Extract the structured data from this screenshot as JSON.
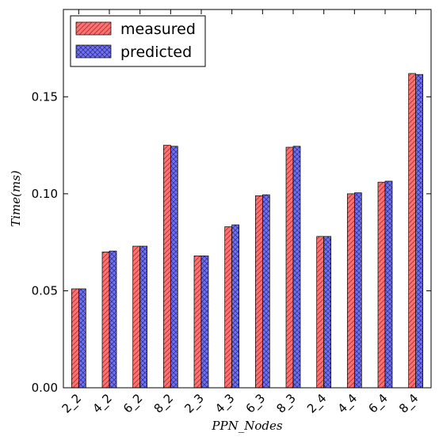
{
  "chart_data": {
    "type": "bar",
    "title": "",
    "xlabel": "PPN_Nodes",
    "ylabel": "Time(ms)",
    "categories": [
      "2_2",
      "4_2",
      "6_2",
      "8_2",
      "2_3",
      "4_3",
      "6_3",
      "8_3",
      "2_4",
      "4_4",
      "6_4",
      "8_4"
    ],
    "series": [
      {
        "name": "measured",
        "values": [
          0.051,
          0.07,
          0.073,
          0.125,
          0.068,
          0.083,
          0.099,
          0.124,
          0.078,
          0.1,
          0.106,
          0.162
        ],
        "color": "#ff7070",
        "hatch": "diagonal"
      },
      {
        "name": "predicted",
        "values": [
          0.051,
          0.0705,
          0.073,
          0.1245,
          0.068,
          0.084,
          0.0995,
          0.1245,
          0.078,
          0.1005,
          0.1065,
          0.1615
        ],
        "color": "#7070ff",
        "hatch": "crosshatch"
      }
    ],
    "ylim": [
      0,
      0.195
    ],
    "yticks": [
      "0.00",
      "0.05",
      "0.10",
      "0.15"
    ],
    "grid": false,
    "legend_position": "top-left"
  }
}
